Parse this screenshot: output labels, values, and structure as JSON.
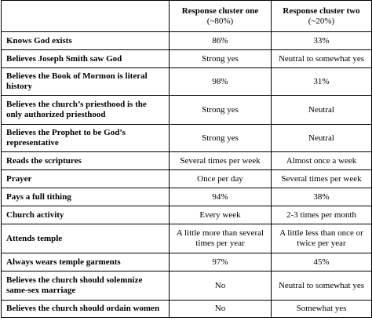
{
  "table": {
    "header": [
      {
        "title": "Response cluster one",
        "subtitle": "(~80%)"
      },
      {
        "title": "Response cluster two",
        "subtitle": "(~20%)"
      }
    ],
    "rows": [
      [
        "Knows God exists",
        "86%",
        "33%"
      ],
      [
        "Believes Joseph Smith saw God",
        "Strong yes",
        "Neutral to somewhat yes"
      ],
      [
        "Believes the Book of Mormon is literal history",
        "98%",
        "31%"
      ],
      [
        "Believes the church’s priesthood is the only authorized priesthood",
        "Strong yes",
        "Neutral"
      ],
      [
        "Believes the Prophet to be God’s representative",
        "Strong yes",
        "Neutral"
      ],
      [
        "Reads the scriptures",
        "Several times per week",
        "Almost once a week"
      ],
      [
        "Prayer",
        "Once per day",
        "Several times per week"
      ],
      [
        "Pays a full tithing",
        "94%",
        "38%"
      ],
      [
        "Church activity",
        "Every week",
        "2-3 times per month"
      ],
      [
        "Attends temple",
        "A little more than several times per year",
        "A little less than once or twice per year"
      ],
      [
        "Always wears temple garments",
        "97%",
        "45%"
      ],
      [
        "Believes the church should solemnize same-sex marriage",
        "No",
        "Neutral to somewhat yes"
      ],
      [
        "Believes the church should ordain women",
        "No",
        "Somewhat yes"
      ]
    ]
  }
}
